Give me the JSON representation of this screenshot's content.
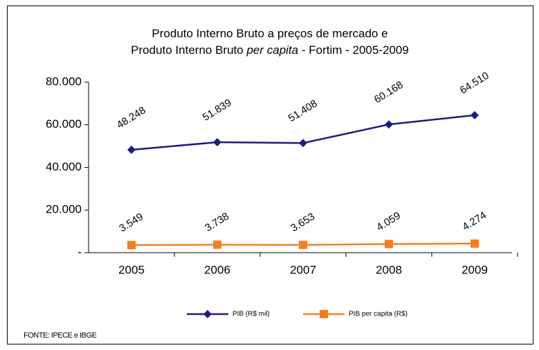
{
  "chart_data": {
    "type": "line",
    "title": [
      [
        {
          "text": "Produto Interno Bruto a preços de mercado  e"
        }
      ],
      [
        {
          "text": "Produto Interno Bruto "
        },
        {
          "text": "per capita",
          "italic": true
        },
        {
          "text": " - Fortim - 2005-2009"
        }
      ]
    ],
    "categories": [
      "2005",
      "2006",
      "2007",
      "2008",
      "2009"
    ],
    "series": [
      {
        "name": "PIB (R$ mil)",
        "color": "#1c1c80",
        "marker": "diamond",
        "values": [
          48248,
          51839,
          51408,
          60168,
          64510
        ],
        "value_labels": [
          "48.248",
          "51.839",
          "51.408",
          "60.168",
          "64.510"
        ]
      },
      {
        "name": "PIB per capita (R$)",
        "color": "#f57f1f",
        "marker": "square",
        "values": [
          3549,
          3738,
          3653,
          4059,
          4274
        ],
        "value_labels": [
          "3.549",
          "3.738",
          "3.653",
          "4.059",
          "4.274"
        ]
      }
    ],
    "ylim": [
      0,
      80000
    ],
    "yticks": [
      {
        "value": 0,
        "label": "-"
      },
      {
        "value": 20000,
        "label": "20.000"
      },
      {
        "value": 40000,
        "label": "40.000"
      },
      {
        "value": 60000,
        "label": "60.000"
      },
      {
        "value": 80000,
        "label": "80.000"
      }
    ],
    "grid": false,
    "legend": "bottom",
    "source": "FONTE: IPECE e IBGE"
  }
}
